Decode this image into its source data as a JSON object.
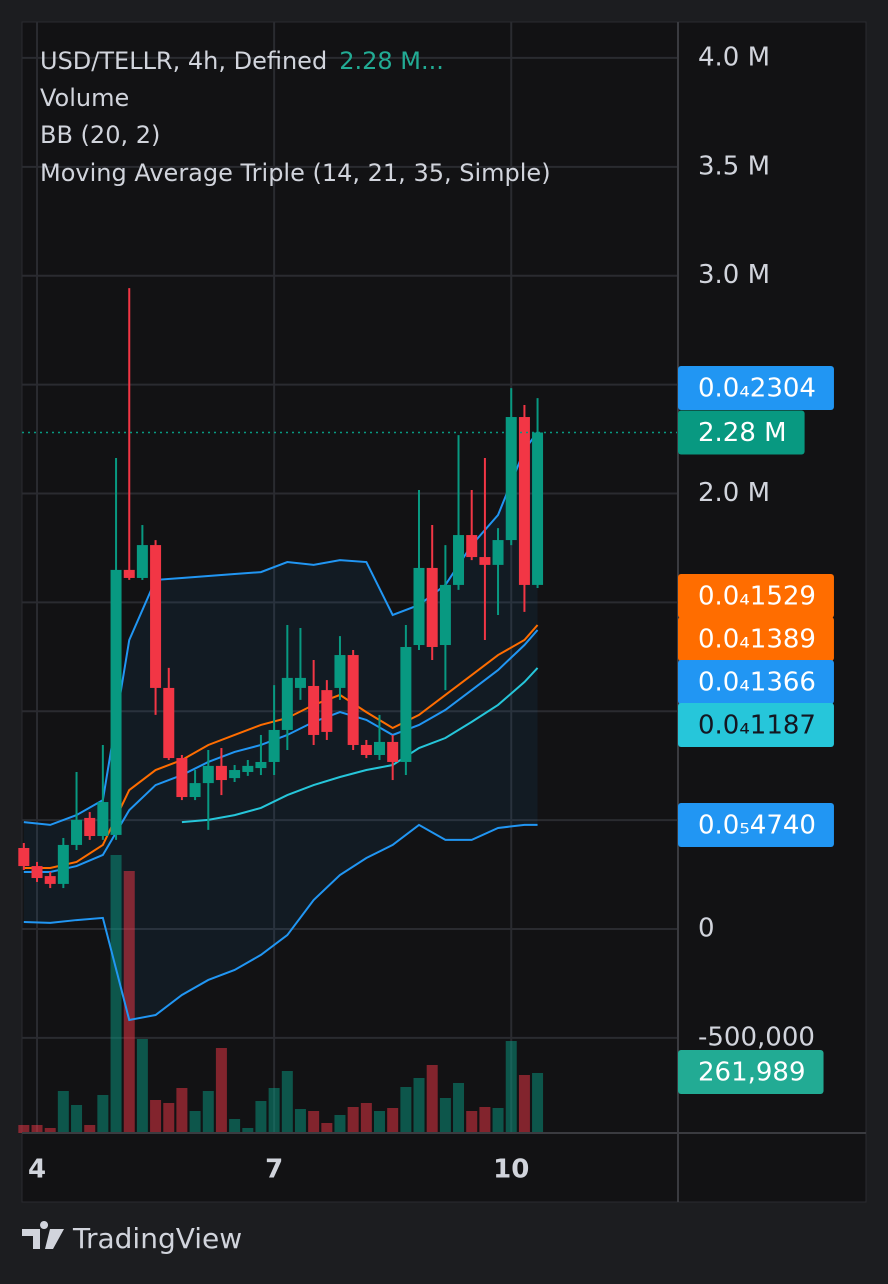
{
  "chart_data": {
    "type": "candlestick",
    "title": "USD/TELLR, 4h, Defined",
    "title_value": "2.28 M...",
    "legend_items": [
      "Volume",
      "BB (20, 2)",
      "Moving Average Triple (14, 21, 35, Simple)"
    ],
    "up_color": "#089981",
    "down_color": "#f23645",
    "x": [
      3.833,
      4,
      4.167,
      4.333,
      4.5,
      4.667,
      4.833,
      5,
      5.167,
      5.333,
      5.5,
      5.667,
      5.833,
      6,
      6.167,
      6.333,
      6.5,
      6.667,
      6.833,
      7,
      7.167,
      7.333,
      7.5,
      7.667,
      7.833,
      8,
      8.167,
      8.333,
      8.5,
      8.667,
      8.833,
      9,
      9.167,
      9.333,
      9.5,
      9.667,
      9.833,
      10,
      10.167,
      10.333
    ],
    "open": [
      372000,
      289000,
      243000,
      207000,
      386000,
      510000,
      427000,
      432000,
      1649000,
      1612000,
      1763000,
      1107000,
      785000,
      606000,
      670000,
      749000,
      693000,
      721000,
      739000,
      767000,
      914000,
      1107000,
      1116000,
      1097000,
      1107000,
      1258000,
      845000,
      799000,
      859000,
      767000,
      1304000,
      1658000,
      1304000,
      1580000,
      1809000,
      1708000,
      1672000,
      1786000,
      2351000,
      1580000
    ],
    "high": [
      395000,
      308000,
      262000,
      418000,
      721000,
      537000,
      845000,
      2163000,
      2943000,
      1855000,
      1786000,
      1199000,
      799000,
      730000,
      822000,
      831000,
      753000,
      776000,
      891000,
      1120000,
      1396000,
      1382000,
      1235000,
      1143000,
      1345000,
      1281000,
      868000,
      983000,
      891000,
      1396000,
      2016000,
      1855000,
      1763000,
      2268000,
      2016000,
      2163000,
      1841000,
      2484000,
      2406000,
      2438000
    ],
    "low": [
      271000,
      216000,
      188000,
      188000,
      363000,
      409000,
      409000,
      409000,
      1603000,
      1603000,
      983000,
      776000,
      592000,
      592000,
      455000,
      615000,
      675000,
      703000,
      707000,
      707000,
      822000,
      1052000,
      845000,
      868000,
      1052000,
      822000,
      785000,
      776000,
      684000,
      707000,
      1281000,
      1235000,
      1097000,
      1557000,
      1694000,
      1327000,
      1442000,
      1763000,
      1456000,
      1566000
    ],
    "close": [
      289000,
      234000,
      207000,
      386000,
      501000,
      427000,
      583000,
      1649000,
      1612000,
      1763000,
      1107000,
      785000,
      606000,
      670000,
      749000,
      684000,
      730000,
      749000,
      767000,
      914000,
      1153000,
      1153000,
      891000,
      905000,
      1258000,
      845000,
      799000,
      859000,
      767000,
      1295000,
      1658000,
      1295000,
      1580000,
      1809000,
      1708000,
      1672000,
      1786000,
      2351000,
      1580000,
      2280000
    ],
    "volume": [
      8,
      8,
      5,
      42,
      28,
      8,
      38,
      278,
      262,
      94,
      33,
      30,
      45,
      22,
      42,
      85,
      14,
      5,
      32,
      45,
      62,
      24,
      22,
      10,
      18,
      26,
      30,
      22,
      25,
      46,
      55,
      68,
      35,
      50,
      22,
      26,
      25,
      92,
      58,
      60
    ],
    "volume_lim": [
      0,
      300
    ],
    "band": {
      "color": "#2196f3"
    },
    "lines": [
      {
        "color": "#2196f3",
        "x": [
          3.833,
          4.167,
          4.5,
          4.833,
          5.167,
          5.5,
          5.833,
          6.167,
          6.5,
          6.833,
          7.167,
          7.5,
          7.833,
          8.167,
          8.5,
          8.833,
          9.167,
          9.5,
          9.833,
          10.167,
          10.333
        ],
        "values": [
          491000,
          478000,
          523000,
          592000,
          1327000,
          1603000,
          1612000,
          1621000,
          1630000,
          1639000,
          1685000,
          1672000,
          1694000,
          1685000,
          1442000,
          1488000,
          1580000,
          1763000,
          1901000,
          2200000,
          2282000
        ]
      },
      {
        "color": "#2196f3",
        "x": [
          3.833,
          4.167,
          4.5,
          4.833,
          5.167,
          5.5,
          5.833,
          6.167,
          6.5,
          6.833,
          7.167,
          7.5,
          7.833,
          8.167,
          8.5,
          8.833,
          9.167,
          9.5,
          9.833,
          10.167,
          10.333
        ],
        "values": [
          32000,
          28000,
          41000,
          51000,
          -418000,
          -395000,
          -303000,
          -234000,
          -188000,
          -119000,
          -28000,
          133000,
          248000,
          326000,
          386000,
          478000,
          409000,
          409000,
          464000,
          478000,
          478000
        ]
      },
      {
        "color": "#ff6d00",
        "x": [
          3.833,
          4.167,
          4.5,
          4.833,
          5.167,
          5.5,
          5.833,
          6.167,
          6.5,
          6.833,
          7.167,
          7.5,
          7.833,
          8.167,
          8.5,
          8.833,
          9.167,
          9.5,
          9.833,
          10.167,
          10.333
        ],
        "values": [
          280000,
          280000,
          308000,
          386000,
          638000,
          730000,
          776000,
          845000,
          891000,
          937000,
          969000,
          1029000,
          1075000,
          996000,
          923000,
          983000,
          1075000,
          1166000,
          1258000,
          1327000,
          1396000
        ]
      },
      {
        "color": "#2196f3",
        "x": [
          3.833,
          4.167,
          4.5,
          4.833,
          5.167,
          5.5,
          5.833,
          6.167,
          6.5,
          6.833,
          7.167,
          7.5,
          7.833,
          8.167,
          8.5,
          8.833,
          9.167,
          9.5,
          9.833,
          10.167,
          10.333
        ],
        "values": [
          262000,
          262000,
          289000,
          340000,
          546000,
          661000,
          707000,
          767000,
          813000,
          845000,
          891000,
          951000,
          996000,
          960000,
          891000,
          937000,
          1006000,
          1097000,
          1189000,
          1304000,
          1373000
        ]
      },
      {
        "color": "#26c6da",
        "x": [
          3.833,
          4.167,
          4.5,
          4.833,
          5.167,
          5.5,
          5.833,
          6.167,
          6.5,
          6.833,
          7.167,
          7.5,
          7.833,
          8.167,
          8.5,
          8.833,
          9.167,
          9.5,
          9.833,
          10.167,
          10.333
        ],
        "values": [
          null,
          null,
          null,
          null,
          null,
          null,
          491000,
          501000,
          523000,
          556000,
          615000,
          661000,
          698000,
          730000,
          753000,
          831000,
          877000,
          951000,
          1029000,
          1134000,
          1199000
        ]
      }
    ],
    "xlim": [
      3.81,
      12.11
    ],
    "xticks": [
      4,
      7,
      10
    ],
    "ylim": [
      -936800,
      4165000
    ],
    "yticks": [
      {
        "value": 4000000,
        "label": "4.0 M"
      },
      {
        "value": 3500000,
        "label": "3.5 M"
      },
      {
        "value": 3000000,
        "label": "3.0 M"
      },
      {
        "value": 2000000,
        "label": "2.0 M"
      },
      0,
      {
        "value": -500000,
        "label": "-500,000"
      }
    ],
    "minor_gridlines": [
      2500000,
      1500000,
      1000000,
      500000
    ],
    "grid": true,
    "last_value": {
      "value": 2280000,
      "label": "2.28 M",
      "color": "#089981"
    },
    "price_labels": [
      {
        "label": "0.0₄2304",
        "color": "#2196f3"
      },
      {
        "label": "0.0₄1529",
        "color": "#ff6d00"
      },
      {
        "label": "0.0₄1389",
        "color": "#ff6d00"
      },
      {
        "label": "0.0₄1366",
        "color": "#2196f3"
      },
      {
        "label": "0.0₄1187",
        "color": "#26c6da"
      },
      {
        "label": "0.0₅4740",
        "color": "#2196f3"
      }
    ],
    "volume_last": {
      "value": 261989,
      "label": "261,989",
      "color": "#22ab94"
    }
  },
  "footer": {
    "brand": "TradingView"
  }
}
